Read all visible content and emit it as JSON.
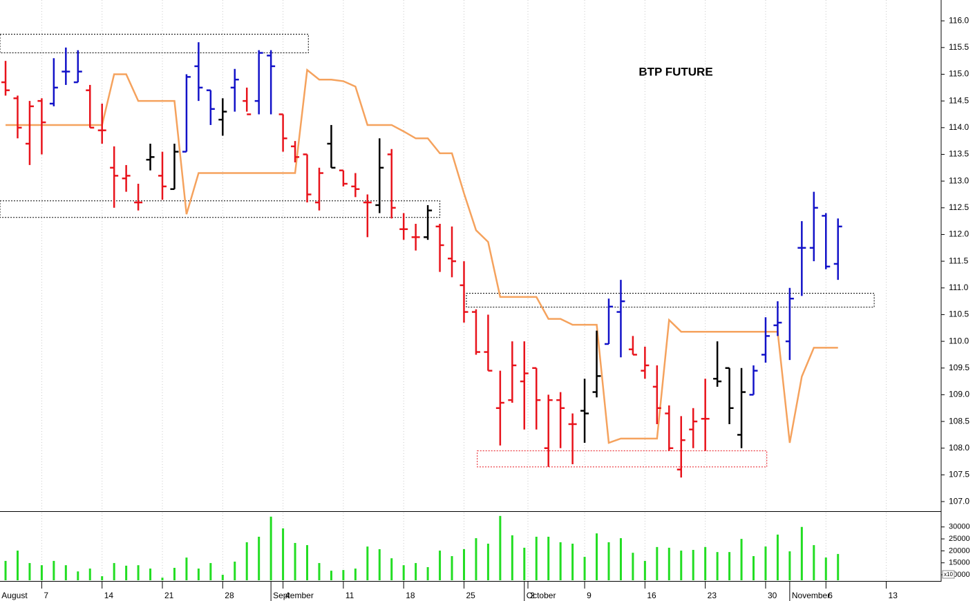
{
  "chart_data": {
    "type": "ohlc",
    "title": "BTP FUTURE",
    "xlim": [
      -0.46,
      77.55
    ],
    "xticks": [
      {
        "value": -0.5,
        "label": "August"
      },
      {
        "value": 3,
        "label": "7"
      },
      {
        "value": 8,
        "label": "14"
      },
      {
        "value": 13,
        "label": "21"
      },
      {
        "value": 18,
        "label": "28"
      },
      {
        "value": 22,
        "label": "September"
      },
      {
        "value": 23,
        "label": "4"
      },
      {
        "value": 28,
        "label": "11"
      },
      {
        "value": 33,
        "label": "18"
      },
      {
        "value": 38,
        "label": "25"
      },
      {
        "value": 43,
        "label": "October"
      },
      {
        "value": 43.3,
        "label": "2"
      },
      {
        "value": 48,
        "label": "9"
      },
      {
        "value": 53,
        "label": "16"
      },
      {
        "value": 58,
        "label": "23"
      },
      {
        "value": 63,
        "label": "30"
      },
      {
        "value": 65,
        "label": "November"
      },
      {
        "value": 68,
        "label": "6"
      },
      {
        "value": 73,
        "label": "13"
      }
    ],
    "ylim": [
      106.82,
      116.39
    ],
    "yticks": [
      {
        "value": 107,
        "label": "107.0"
      },
      107.5,
      {
        "value": 108,
        "label": "108.0"
      },
      108.5,
      {
        "value": 109,
        "label": "109.0"
      },
      109.5,
      {
        "value": 110,
        "label": "110.0"
      },
      110.5,
      {
        "value": 111,
        "label": "111.0"
      },
      111.5,
      {
        "value": 112,
        "label": "112.0"
      },
      112.5,
      {
        "value": 113,
        "label": "113.0"
      },
      113.5,
      {
        "value": 114,
        "label": "114.0"
      },
      114.5,
      {
        "value": 115,
        "label": "115.0"
      },
      115.5,
      {
        "value": 116,
        "label": "116.0"
      }
    ],
    "grid": true,
    "open": [
      114.85,
      114.55,
      113.7,
      114.5,
      114.45,
      115.05,
      114.85,
      114.7,
      113.95,
      113.25,
      113.05,
      112.6,
      113.4,
      113.1,
      112.85,
      113.55,
      115.15,
      114.7,
      114.15,
      114.75,
      114.5,
      114.5,
      115.35,
      114.25,
      113.65,
      113.5,
      112.6,
      113.7,
      113.2,
      112.9,
      112.6,
      112.55,
      113.5,
      112.1,
      111.95,
      111.95,
      112.15,
      111.55,
      111.05,
      110.55,
      109.8,
      108.75,
      108.9,
      109.25,
      109.5,
      108.0,
      108.9,
      108.45,
      108.7,
      109.05,
      109.95,
      110.55,
      109.85,
      109.45,
      109.15,
      108.65,
      107.6,
      108.35,
      108.55,
      109.3,
      109.5,
      108.25,
      109.0,
      109.75,
      110.3,
      110.0,
      111.75,
      111.75,
      112.35,
      111.45
    ],
    "high": [
      115.25,
      114.6,
      114.5,
      114.55,
      115.3,
      115.5,
      115.45,
      114.8,
      114.45,
      113.65,
      113.3,
      112.95,
      113.7,
      113.55,
      113.7,
      115.0,
      115.6,
      114.7,
      114.55,
      115.1,
      114.75,
      115.45,
      115.45,
      114.25,
      113.75,
      113.5,
      113.25,
      114.05,
      113.2,
      113.15,
      112.75,
      113.8,
      113.6,
      112.4,
      112.2,
      112.55,
      112.2,
      112.15,
      111.5,
      110.6,
      110.5,
      109.45,
      110.0,
      110.0,
      109.5,
      109.0,
      109.05,
      108.65,
      109.3,
      110.2,
      110.8,
      111.15,
      110.1,
      109.9,
      109.55,
      108.8,
      108.6,
      108.75,
      109.3,
      110.0,
      109.5,
      109.5,
      109.55,
      110.45,
      110.75,
      111.0,
      112.25,
      112.8,
      112.4,
      112.3
    ],
    "low": [
      114.6,
      113.8,
      113.3,
      113.5,
      114.4,
      114.8,
      114.85,
      114.0,
      113.7,
      112.5,
      112.8,
      112.45,
      113.2,
      112.65,
      112.85,
      113.55,
      114.5,
      114.05,
      113.85,
      114.3,
      114.3,
      114.25,
      114.25,
      113.55,
      113.35,
      112.6,
      112.45,
      113.25,
      112.9,
      112.7,
      111.95,
      112.4,
      112.3,
      111.9,
      111.7,
      111.9,
      111.3,
      111.2,
      110.35,
      109.75,
      109.45,
      108.05,
      108.85,
      108.35,
      108.35,
      107.65,
      108.0,
      107.7,
      108.1,
      108.95,
      109.95,
      109.7,
      109.75,
      109.3,
      108.45,
      107.95,
      107.45,
      108.0,
      107.95,
      109.15,
      108.45,
      108.0,
      109.0,
      109.6,
      110.1,
      109.65,
      110.85,
      111.5,
      111.35,
      111.15
    ],
    "close": [
      114.7,
      114.0,
      114.4,
      114.1,
      114.75,
      115.05,
      115.05,
      114.0,
      113.95,
      113.1,
      113.1,
      112.6,
      113.45,
      112.9,
      113.55,
      114.95,
      114.75,
      114.35,
      114.3,
      114.9,
      114.25,
      115.4,
      115.15,
      113.8,
      113.45,
      112.75,
      113.15,
      113.25,
      112.95,
      112.85,
      112.6,
      113.25,
      112.5,
      112.1,
      111.95,
      112.45,
      111.8,
      111.5,
      110.55,
      109.8,
      109.45,
      108.85,
      109.55,
      109.4,
      108.9,
      108.9,
      108.75,
      108.45,
      108.65,
      109.35,
      110.65,
      110.75,
      109.75,
      109.55,
      108.75,
      108.0,
      108.15,
      108.5,
      108.55,
      109.25,
      108.75,
      109.05,
      109.45,
      110.1,
      110.35,
      110.8,
      111.75,
      112.5,
      111.4,
      112.15
    ],
    "colors": [
      "#e8131b",
      "#e8131b",
      "#e8131b",
      "#e8131b",
      "#1212c8",
      "#1212c8",
      "#1212c8",
      "#e8131b",
      "#e8131b",
      "#e8131b",
      "#e8131b",
      "#e8131b",
      "#000000",
      "#e8131b",
      "#000000",
      "#1212c8",
      "#1212c8",
      "#1212c8",
      "#000000",
      "#1212c8",
      "#e8131b",
      "#1212c8",
      "#1212c8",
      "#e8131b",
      "#e8131b",
      "#e8131b",
      "#e8131b",
      "#000000",
      "#e8131b",
      "#e8131b",
      "#e8131b",
      "#000000",
      "#e8131b",
      "#e8131b",
      "#e8131b",
      "#000000",
      "#e8131b",
      "#e8131b",
      "#e8131b",
      "#e8131b",
      "#e8131b",
      "#e8131b",
      "#e8131b",
      "#e8131b",
      "#e8131b",
      "#e8131b",
      "#e8131b",
      "#e8131b",
      "#000000",
      "#000000",
      "#1212c8",
      "#1212c8",
      "#e8131b",
      "#e8131b",
      "#e8131b",
      "#e8131b",
      "#e8131b",
      "#e8131b",
      "#e8131b",
      "#000000",
      "#000000",
      "#000000",
      "#1212c8",
      "#1212c8",
      "#1212c8",
      "#1212c8",
      "#1212c8",
      "#1212c8",
      "#1212c8",
      "#1212c8"
    ],
    "line": {
      "color": "#f5a25d",
      "values": [
        114.05,
        114.05,
        114.05,
        114.05,
        114.05,
        114.05,
        114.05,
        114.05,
        114.05,
        115.0,
        115.0,
        114.5,
        114.5,
        114.5,
        114.5,
        112.38,
        113.15,
        113.15,
        113.15,
        113.15,
        113.15,
        113.15,
        113.15,
        113.15,
        113.15,
        115.08,
        114.9,
        114.9,
        114.87,
        114.77,
        114.05,
        114.05,
        114.05,
        113.93,
        113.8,
        113.8,
        113.52,
        113.52,
        112.77,
        112.08,
        111.86,
        110.83,
        110.83,
        110.83,
        110.83,
        110.42,
        110.42,
        110.31,
        110.31,
        110.31,
        108.1,
        108.18,
        108.18,
        108.18,
        108.18,
        110.4,
        110.18,
        110.18,
        110.18,
        110.18,
        110.18,
        110.18,
        110.18,
        110.18,
        110.18,
        108.1,
        109.34,
        109.88,
        109.88,
        109.88
      ]
    },
    "zones": [
      {
        "x": [
          -0.46,
          25.1
        ],
        "y": [
          115.4,
          115.75
        ],
        "color": "#000000"
      },
      {
        "x": [
          -0.46,
          36.0
        ],
        "y": [
          112.32,
          112.63
        ],
        "color": "#000000"
      },
      {
        "x": [
          38.2,
          72.0
        ],
        "y": [
          110.64,
          110.9
        ],
        "color": "#000000"
      },
      {
        "x": [
          39.1,
          63.1
        ],
        "y": [
          107.65,
          107.95
        ],
        "color": "#e8131b"
      }
    ],
    "volume": {
      "color": "#22dd22",
      "ylim": [
        7700,
        36000
      ],
      "yticks": [
        10000,
        15000,
        20000,
        25000,
        30000
      ],
      "note": "x10",
      "values": [
        15800,
        20100,
        14900,
        14000,
        15800,
        14000,
        11400,
        12600,
        9400,
        14900,
        13800,
        14000,
        12600,
        8800,
        12900,
        17200,
        12600,
        14900,
        10000,
        15500,
        23600,
        25900,
        34300,
        29400,
        23300,
        22400,
        14900,
        11700,
        12000,
        12600,
        21800,
        20700,
        16900,
        14000,
        14900,
        13200,
        20100,
        17800,
        20700,
        25300,
        23000,
        34600,
        26500,
        21300,
        25900,
        25900,
        23600,
        23000,
        17500,
        27300,
        23600,
        25300,
        19200,
        15800,
        21600,
        21300,
        20100,
        20400,
        21600,
        19500,
        19500,
        25000,
        17800,
        21800,
        26800,
        19800,
        30000,
        22400,
        17200,
        18700
      ]
    }
  }
}
